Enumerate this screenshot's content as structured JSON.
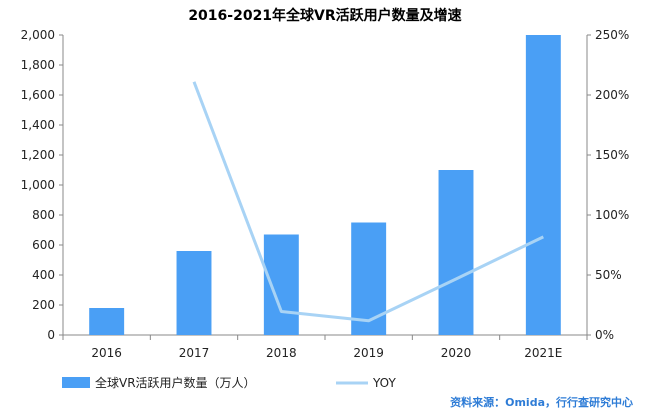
{
  "chart_data": {
    "type": "bar",
    "title": "2016-2021年全球VR活跃用户数量及增速",
    "categories": [
      "2016",
      "2017",
      "2018",
      "2019",
      "2020",
      "2021E"
    ],
    "series": [
      {
        "name": "全球VR活跃用户数量（万人）",
        "type": "bar",
        "axis": "left",
        "color": "#4a9ff5",
        "values": [
          180,
          560,
          670,
          750,
          1100,
          2000
        ]
      },
      {
        "name": "YOY",
        "type": "line",
        "axis": "right",
        "color": "#a8d3f5",
        "values": [
          null,
          211,
          19.6,
          11.9,
          46.7,
          81.8
        ]
      }
    ],
    "y_left": {
      "min": 0,
      "max": 2000,
      "step": 200,
      "tick_labels": [
        "0",
        "200",
        "400",
        "600",
        "800",
        "1,000",
        "1,200",
        "1,400",
        "1,600",
        "1,800",
        "2,000"
      ]
    },
    "y_right": {
      "min": 0,
      "max": 250,
      "step": 50,
      "tick_labels": [
        "0%",
        "50%",
        "100%",
        "150%",
        "200%",
        "250%"
      ]
    },
    "grid": false,
    "legend_position": "bottom"
  },
  "source_text": "资料来源：Omida，行行查研究中心"
}
